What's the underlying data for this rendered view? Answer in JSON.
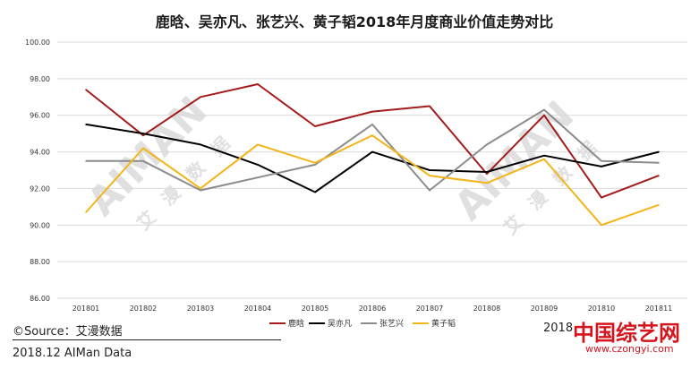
{
  "chart_data": {
    "type": "line",
    "title": "鹿晗、吴亦凡、张艺兴、黄子韬2018年月度商业价值走势对比",
    "x": [
      "201801",
      "201802",
      "201803",
      "201804",
      "201805",
      "201806",
      "201807",
      "201808",
      "201809",
      "201810",
      "201811"
    ],
    "ylim": [
      86,
      100
    ],
    "yticks": [
      "86.00",
      "88.00",
      "90.00",
      "92.00",
      "94.00",
      "96.00",
      "98.00",
      "100.00"
    ],
    "grid": true,
    "legend": "bottom",
    "series": [
      {
        "name": "鹿晗",
        "color": "#a31b1b",
        "values": [
          97.4,
          94.9,
          97.0,
          97.7,
          95.4,
          96.2,
          96.5,
          92.8,
          96.0,
          91.5,
          92.7
        ]
      },
      {
        "name": "吴亦凡",
        "color": "#000000",
        "values": [
          95.5,
          95.0,
          94.4,
          93.3,
          91.8,
          94.0,
          93.0,
          92.9,
          93.8,
          93.2,
          94.0
        ]
      },
      {
        "name": "张艺兴",
        "color": "#8c8c8c",
        "values": [
          93.5,
          93.5,
          91.9,
          92.6,
          93.3,
          95.5,
          91.9,
          94.4,
          96.3,
          93.5,
          93.4
        ]
      },
      {
        "name": "黄子韬",
        "color": "#f2b51a",
        "values": [
          90.7,
          94.2,
          92.0,
          94.4,
          93.4,
          94.9,
          92.7,
          92.3,
          93.6,
          90.0,
          91.1
        ]
      }
    ]
  },
  "footer": {
    "source": "©Source：艾漫数据",
    "date": "2018.12 AIMan Data",
    "right_text": "2018",
    "watermark_brand": "AIMAN",
    "watermark_cn": "艾 漫 数 据",
    "site_logo": "中国综艺网",
    "site_url": "www.czongyi.com"
  }
}
